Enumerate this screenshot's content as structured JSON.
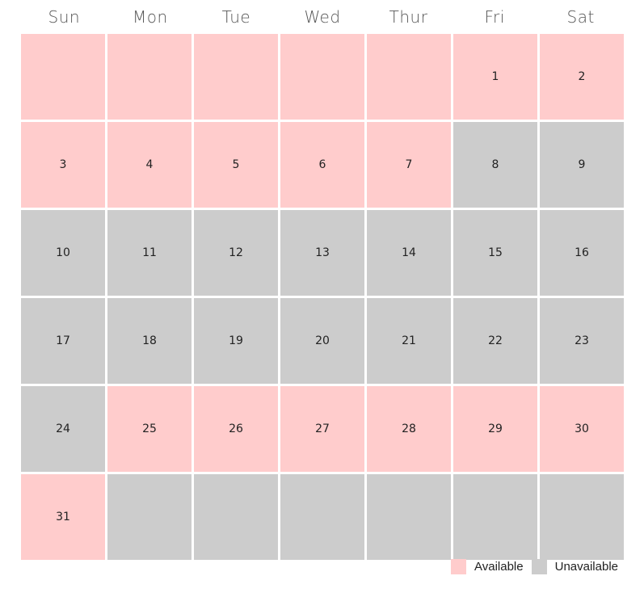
{
  "weekdays": [
    "Sun",
    "Mon",
    "Tue",
    "Wed",
    "Thur",
    "Fri",
    "Sat"
  ],
  "colors": {
    "available": "#ffcccc",
    "unavailable": "#cccccc"
  },
  "days": [
    {
      "label": "",
      "status": "available"
    },
    {
      "label": "",
      "status": "available"
    },
    {
      "label": "",
      "status": "available"
    },
    {
      "label": "",
      "status": "available"
    },
    {
      "label": "",
      "status": "available"
    },
    {
      "label": "1",
      "status": "available"
    },
    {
      "label": "2",
      "status": "available"
    },
    {
      "label": "3",
      "status": "available"
    },
    {
      "label": "4",
      "status": "available"
    },
    {
      "label": "5",
      "status": "available"
    },
    {
      "label": "6",
      "status": "available"
    },
    {
      "label": "7",
      "status": "available"
    },
    {
      "label": "8",
      "status": "unavailable"
    },
    {
      "label": "9",
      "status": "unavailable"
    },
    {
      "label": "10",
      "status": "unavailable"
    },
    {
      "label": "11",
      "status": "unavailable"
    },
    {
      "label": "12",
      "status": "unavailable"
    },
    {
      "label": "13",
      "status": "unavailable"
    },
    {
      "label": "14",
      "status": "unavailable"
    },
    {
      "label": "15",
      "status": "unavailable"
    },
    {
      "label": "16",
      "status": "unavailable"
    },
    {
      "label": "17",
      "status": "unavailable"
    },
    {
      "label": "18",
      "status": "unavailable"
    },
    {
      "label": "19",
      "status": "unavailable"
    },
    {
      "label": "20",
      "status": "unavailable"
    },
    {
      "label": "21",
      "status": "unavailable"
    },
    {
      "label": "22",
      "status": "unavailable"
    },
    {
      "label": "23",
      "status": "unavailable"
    },
    {
      "label": "24",
      "status": "unavailable"
    },
    {
      "label": "25",
      "status": "available"
    },
    {
      "label": "26",
      "status": "available"
    },
    {
      "label": "27",
      "status": "available"
    },
    {
      "label": "28",
      "status": "available"
    },
    {
      "label": "29",
      "status": "available"
    },
    {
      "label": "30",
      "status": "available"
    },
    {
      "label": "31",
      "status": "available"
    },
    {
      "label": "",
      "status": "unavailable"
    },
    {
      "label": "",
      "status": "unavailable"
    },
    {
      "label": "",
      "status": "unavailable"
    },
    {
      "label": "",
      "status": "unavailable"
    },
    {
      "label": "",
      "status": "unavailable"
    },
    {
      "label": "",
      "status": "unavailable"
    }
  ],
  "legend": {
    "available_label": "Available",
    "unavailable_label": "Unavailable"
  }
}
